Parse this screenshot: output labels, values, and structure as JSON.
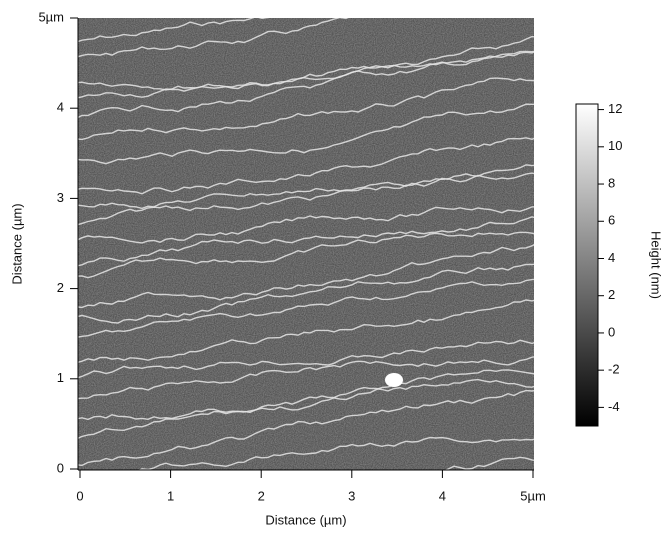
{
  "chart_data": {
    "type": "image",
    "xlabel": "Distance (µm)",
    "ylabel": "Distance (µm)",
    "xlim": [
      0,
      5
    ],
    "ylim": [
      0,
      5
    ],
    "xticks": [
      0,
      1,
      2,
      3,
      4,
      {
        "value": 5,
        "label": "5µm"
      }
    ],
    "yticks": [
      0,
      1,
      2,
      3,
      4,
      {
        "value": 5,
        "label": "5µm"
      }
    ],
    "colorbar": {
      "label": "Height (nm)",
      "lim": [
        -5,
        12.3
      ],
      "ticks": [
        -4,
        -2,
        0,
        2,
        4,
        6,
        8,
        10,
        12
      ],
      "colors": [
        "#000000",
        "#ffffff"
      ]
    }
  }
}
